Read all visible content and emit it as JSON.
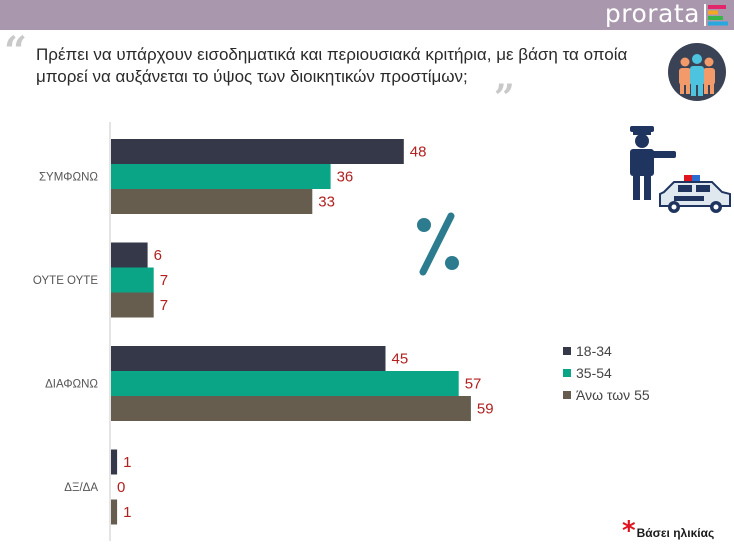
{
  "header": {
    "brand": "prorata",
    "colors": {
      "bar": "#a998ad",
      "brand_mark": [
        "#e3256b",
        "#f5a623",
        "#39b54a",
        "#29a8e0"
      ]
    }
  },
  "question": {
    "line1": "Πρέπει να υπάρχουν εισοδηματικά και περιουσιακά κριτήρια, με βάση τα οποία",
    "line2": "μπορεί να αυξάνεται το ύψος των διοικητικών προστίμων;"
  },
  "icons": [
    "quote-open-icon",
    "quote-close-icon",
    "people-group-icon",
    "police-officer-icon",
    "police-car-icon",
    "percent-icon",
    "asterisk-icon"
  ],
  "chart_data": {
    "type": "bar",
    "orientation": "horizontal",
    "categories": [
      "ΣΥΜΦΩΝΩ",
      "ΟΥΤΕ ΟΥΤΕ",
      "ΔΙΑΦΩΝΩ",
      "ΔΞ/ΔΑ"
    ],
    "series": [
      {
        "name": "18-34",
        "values": [
          48,
          6,
          45,
          1
        ],
        "color": "#353849"
      },
      {
        "name": "35-54",
        "values": [
          36,
          7,
          57,
          0
        ],
        "color": "#0aa587"
      },
      {
        "name": "Άνω των 55",
        "values": [
          33,
          7,
          59,
          1
        ],
        "color": "#665d4f"
      }
    ],
    "xlim": [
      0,
      100
    ],
    "grid": false,
    "legend": "right",
    "value_label_color": "#b22020"
  },
  "footnote": {
    "star": "*",
    "text": "Βάσει ηλικίας"
  }
}
